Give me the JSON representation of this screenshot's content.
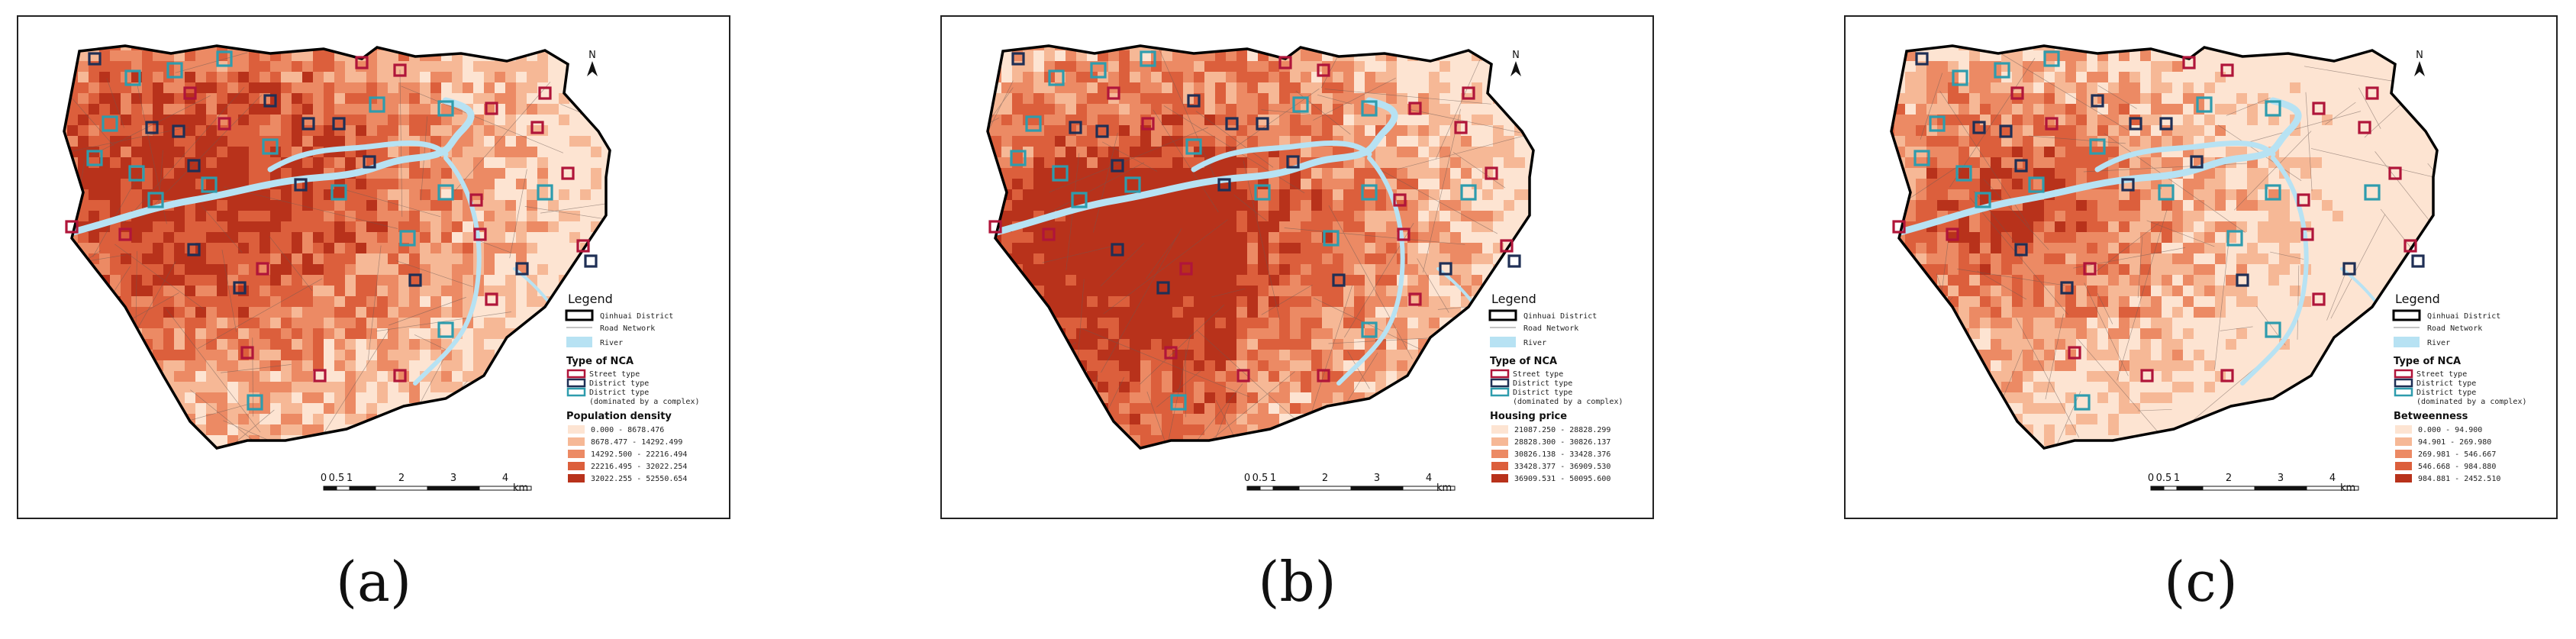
{
  "panels": [
    {
      "caption": "(a)",
      "variable_title": "Population density",
      "class_labels": [
        "0.000 - 8678.476",
        "8678.477 - 14292.499",
        "14292.500 - 22216.494",
        "22216.495 - 32022.254",
        "32022.255 - 52550.654"
      ],
      "seed": 11,
      "hot_x": 0.25,
      "hot_y": 0.35
    },
    {
      "caption": "(b)",
      "variable_title": "Housing price",
      "class_labels": [
        "21087.250 - 28828.299",
        "28828.300 - 30826.137",
        "30826.138 - 33428.376",
        "33428.377 - 36909.530",
        "36909.531 - 50095.600"
      ],
      "seed": 23,
      "hot_x": 0.3,
      "hot_y": 0.45
    },
    {
      "caption": "(c)",
      "variable_title": "Betweenness",
      "class_labels": [
        "0.000 - 94.900",
        "94.901 - 269.980",
        "269.981 - 546.667",
        "546.668 - 984.880",
        "984.881 - 2452.510"
      ],
      "seed": 37,
      "hot_x": 0.22,
      "hot_y": 0.4
    }
  ],
  "legend": {
    "title": "Legend",
    "boundary_label": "Qinhuai District",
    "road_label": "Road Network",
    "river_label": "River",
    "nca_title": "Type of NCA",
    "nca_types": [
      "Street type",
      "District type",
      "District type",
      "(dominated by a complex)"
    ]
  },
  "north_label": "N",
  "scale_labels": [
    "0",
    "0.5",
    "1",
    "2",
    "3",
    "4"
  ],
  "scale_unit": "km",
  "colors": {
    "classes": [
      "#fde4d2",
      "#f6b896",
      "#ec8a64",
      "#dc5f3c",
      "#b8321b"
    ],
    "river": "#b7e2f3",
    "street_type": "#b0153a",
    "district_type": "#1f2f55",
    "complex_type": "#2e9cad",
    "boundary": "#000000"
  }
}
